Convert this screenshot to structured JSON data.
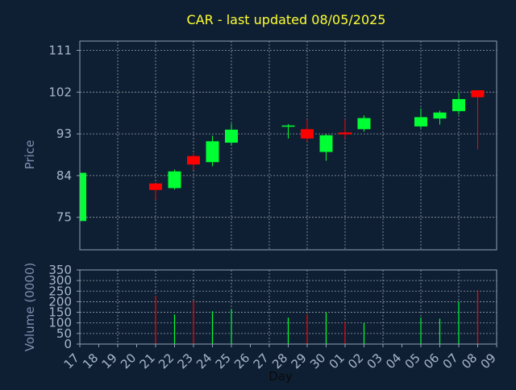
{
  "chart_data": {
    "type": "candlestick",
    "title": "CAR - last updated 08/05/2025",
    "xlabel": "Day",
    "grid": true,
    "colors": {
      "background": "#0f1f33",
      "plot_background": "#0f1f33",
      "axis": "#8fa0b5",
      "grid": "#c0c8d0",
      "title": "#ffff33",
      "label": "#7c8fb0",
      "tick_label": "#a9b6cc",
      "up": "#00ff33",
      "down": "#ff0000"
    },
    "categories": [
      "17",
      "18",
      "19",
      "20",
      "21",
      "22",
      "23",
      "24",
      "25",
      "26",
      "27",
      "28",
      "29",
      "30",
      "01",
      "02",
      "03",
      "04",
      "05",
      "06",
      "07",
      "08",
      "09"
    ],
    "price_panel": {
      "ylabel": "Price",
      "ylim": [
        68,
        113
      ],
      "yticks": [
        75,
        84,
        93,
        102,
        111
      ],
      "candles": [
        {
          "x": "17",
          "open": 74.2,
          "close": 84.6,
          "high": 84.6,
          "low": 74.2
        },
        {
          "x": "21",
          "open": 82.3,
          "close": 80.9,
          "high": 82.3,
          "low": 78.8
        },
        {
          "x": "22",
          "open": 81.3,
          "close": 84.9,
          "high": 85.3,
          "low": 81.0
        },
        {
          "x": "23",
          "open": 88.2,
          "close": 86.4,
          "high": 88.8,
          "low": 85.2
        },
        {
          "x": "24",
          "open": 86.9,
          "close": 91.4,
          "high": 92.6,
          "low": 86.0
        },
        {
          "x": "25",
          "open": 91.1,
          "close": 93.9,
          "high": 95.2,
          "low": 90.5
        },
        {
          "x": "28",
          "open": 94.6,
          "close": 94.8,
          "high": 95.1,
          "low": 92.0
        },
        {
          "x": "29",
          "open": 94.0,
          "close": 92.0,
          "high": 96.1,
          "low": 91.3
        },
        {
          "x": "30",
          "open": 89.1,
          "close": 92.7,
          "high": 92.9,
          "low": 87.2
        },
        {
          "x": "01",
          "open": 93.3,
          "close": 92.9,
          "high": 96.1,
          "low": 92.0
        },
        {
          "x": "02",
          "open": 94.0,
          "close": 96.4,
          "high": 97.0,
          "low": 93.5
        },
        {
          "x": "05",
          "open": 94.6,
          "close": 96.6,
          "high": 98.5,
          "low": 94.2
        },
        {
          "x": "06",
          "open": 96.3,
          "close": 97.6,
          "high": 98.0,
          "low": 95.0
        },
        {
          "x": "07",
          "open": 97.9,
          "close": 100.5,
          "high": 101.9,
          "low": 97.2
        },
        {
          "x": "08",
          "open": 102.4,
          "close": 100.9,
          "high": 102.4,
          "low": 89.6
        }
      ]
    },
    "volume_panel": {
      "ylabel": "Volume (0000)",
      "ylim": [
        0,
        350
      ],
      "yticks": [
        0,
        50,
        100,
        150,
        200,
        250,
        300,
        350
      ],
      "bars": [
        {
          "x": "21",
          "value": 228,
          "direction": "down"
        },
        {
          "x": "22",
          "value": 140,
          "direction": "up"
        },
        {
          "x": "23",
          "value": 205,
          "direction": "down"
        },
        {
          "x": "24",
          "value": 155,
          "direction": "up"
        },
        {
          "x": "25",
          "value": 165,
          "direction": "up"
        },
        {
          "x": "28",
          "value": 125,
          "direction": "up"
        },
        {
          "x": "29",
          "value": 140,
          "direction": "down"
        },
        {
          "x": "30",
          "value": 150,
          "direction": "up"
        },
        {
          "x": "01",
          "value": 105,
          "direction": "down"
        },
        {
          "x": "02",
          "value": 100,
          "direction": "up"
        },
        {
          "x": "05",
          "value": 125,
          "direction": "up"
        },
        {
          "x": "06",
          "value": 120,
          "direction": "up"
        },
        {
          "x": "07",
          "value": 200,
          "direction": "up"
        },
        {
          "x": "08",
          "value": 255,
          "direction": "down"
        }
      ]
    }
  }
}
